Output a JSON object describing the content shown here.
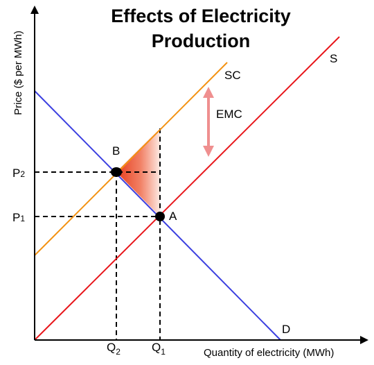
{
  "title": {
    "line1": "Effects of Electricity",
    "line2": "Production"
  },
  "axes": {
    "x_label": "Quantity of electricity (MWh)",
    "y_label": "Price ($ per MWh)"
  },
  "curves": {
    "supply": {
      "label": "S",
      "color": "#e8161b"
    },
    "social_cost": {
      "label": "SC",
      "color": "#f39212"
    },
    "demand": {
      "label": "D",
      "color": "#3b3fe0"
    }
  },
  "emc": {
    "label": "EMC",
    "arrow_color": "#ef8f8f"
  },
  "points": {
    "a": {
      "label": "A"
    },
    "b": {
      "label": "B"
    }
  },
  "ticks": {
    "p2": {
      "base": "P",
      "sub": "2"
    },
    "p1": {
      "base": "P",
      "sub": "1"
    },
    "q2": {
      "base": "Q",
      "sub": "2"
    },
    "q1": {
      "base": "Q",
      "sub": "1"
    }
  },
  "colors": {
    "deadweight_fill_dark": "#e53a1a",
    "deadweight_fill_light": "#fde7e0"
  }
}
